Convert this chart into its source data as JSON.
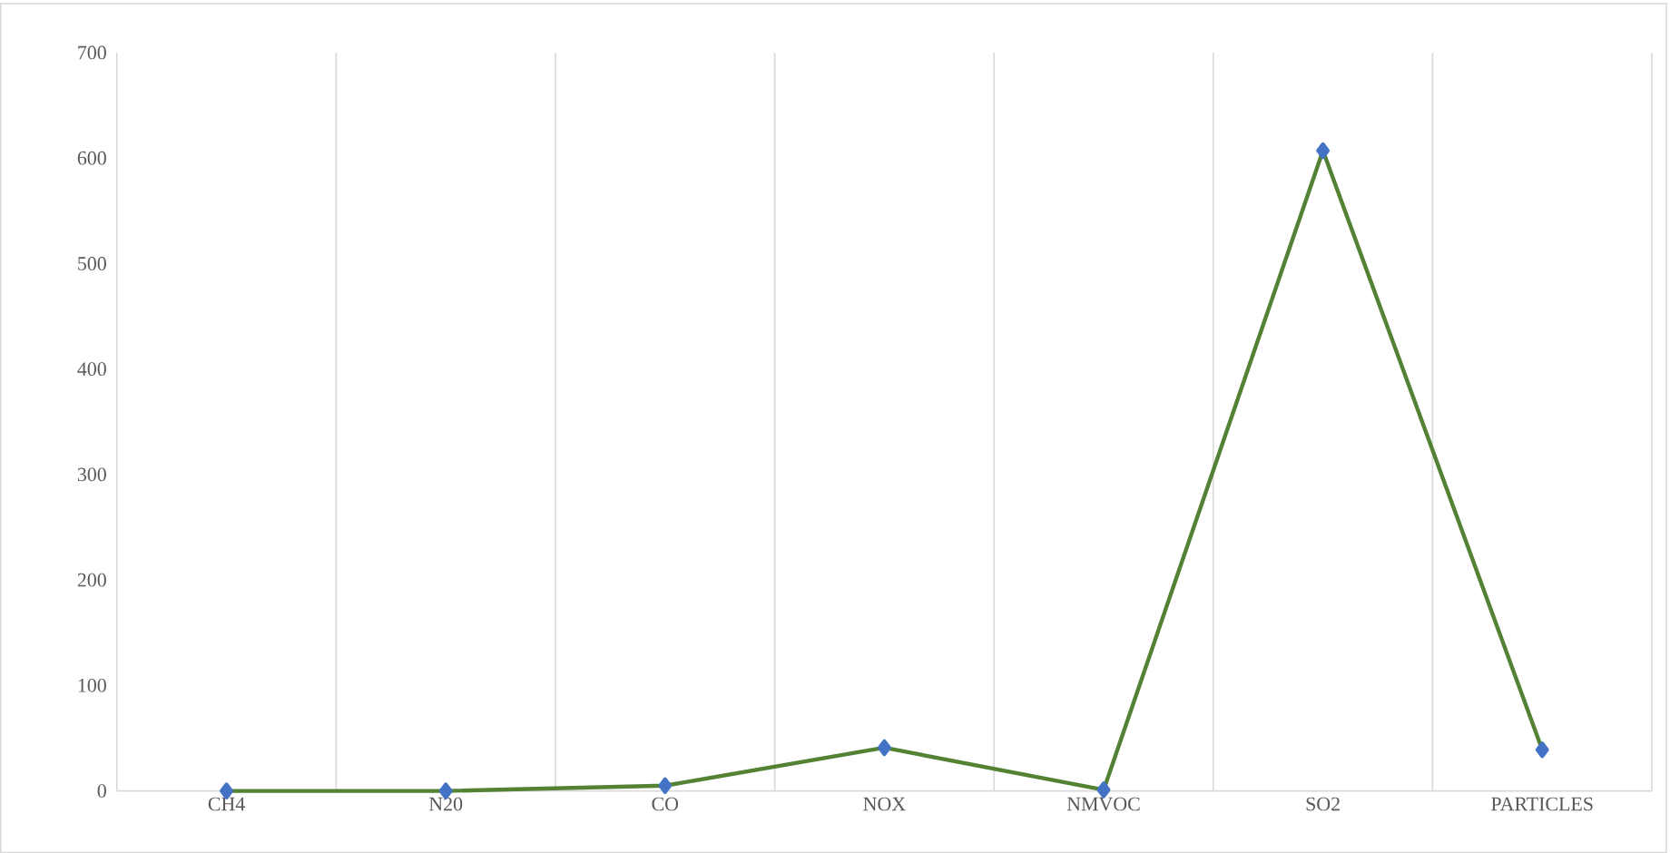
{
  "chart_data": {
    "type": "line",
    "categories": [
      "CH4",
      "N20",
      "CO",
      "NOX",
      "NMVOC",
      "SO2",
      "PARTICLES"
    ],
    "series": [
      {
        "color": "#548235",
        "values": [
          0,
          0,
          5,
          41,
          1,
          607,
          39
        ]
      }
    ],
    "ylim": [
      0,
      700
    ],
    "yticks": [
      0,
      100,
      200,
      300,
      400,
      500,
      600,
      700
    ],
    "grid": "x",
    "marker": "diamond",
    "line_style": "solid"
  }
}
